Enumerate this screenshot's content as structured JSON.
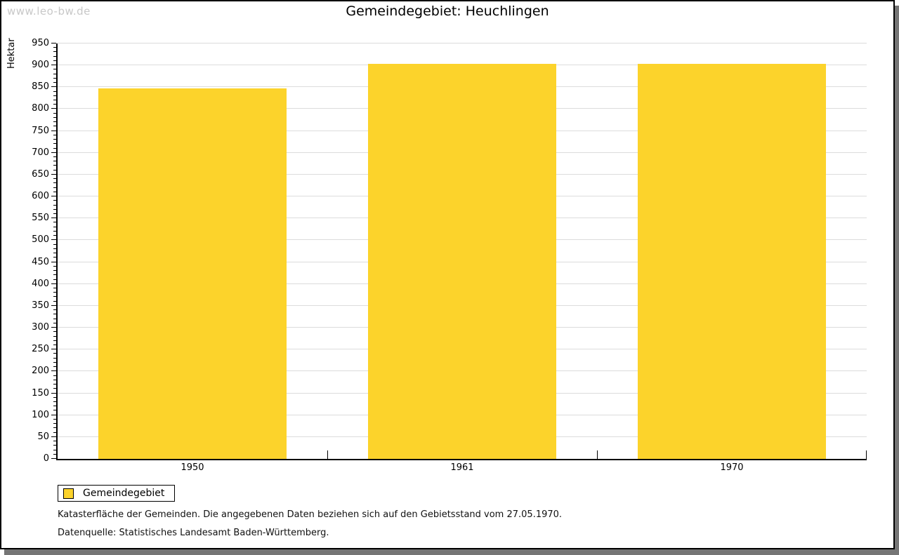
{
  "watermark": "www.leo-bw.de",
  "title": "Gemeindegebiet: Heuchlingen",
  "legend": {
    "label": "Gemeindegebiet"
  },
  "footnotes": [
    "Katasterfläche der Gemeinden. Die angegebenen Daten beziehen sich auf den Gebietsstand vom 27.05.1970.",
    "Datenquelle: Statistisches Landesamt Baden-Württemberg."
  ],
  "colors": {
    "bar": "#FCD32B",
    "grid": "#DCDCDC",
    "axis": "#000000",
    "watermark": "#C8C8C8",
    "shadow": "#757575"
  },
  "chart_data": {
    "type": "bar",
    "categories": [
      "1950",
      "1961",
      "1970"
    ],
    "series": [
      {
        "name": "Gemeindegebiet",
        "values": [
          847,
          904,
          904
        ]
      }
    ],
    "title": "Gemeindegebiet: Heuchlingen",
    "xlabel": "",
    "ylabel": "Hektar",
    "ylim": [
      0,
      950
    ],
    "ytick_step": 50,
    "minor_tick_step": 10,
    "grid": true,
    "legend_position": "bottom-left"
  }
}
